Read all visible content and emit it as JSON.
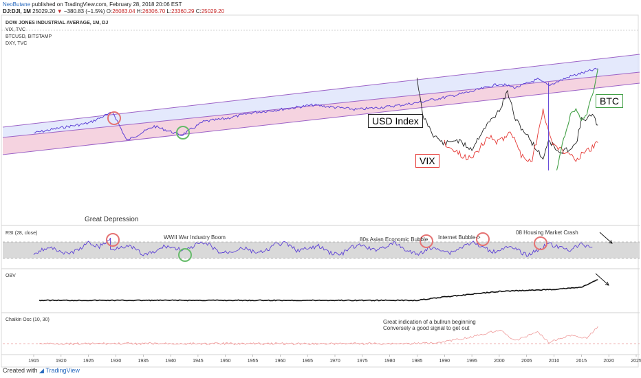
{
  "header": {
    "author": "NeoButane",
    "published": "published on TradingView.com, February 28, 2018 20:06 EST",
    "symbol": "DJ:DJI, 1M",
    "last": "25029.20",
    "change": "−380.83 (−1.5%)",
    "open_label": "O:",
    "open": "26083.04",
    "high_label": "H:",
    "high": "26306.70",
    "low_label": "L:",
    "low": "23360.29",
    "close_label": "C:",
    "close": "25029.20"
  },
  "legend": {
    "main": "DOW JONES INDUSTRIAL AVERAGE, 1M, DJ",
    "s2": "VIX, TVC",
    "s3": "BTCUSD, BITSTAMP",
    "s4": "DXY, TVC"
  },
  "panes": {
    "rsi": "RSI (28, close)",
    "obv": "OBV",
    "chaikin": "Chaikin Osc (10, 30)"
  },
  "annotations": {
    "usd_index": "USD Index",
    "vix": "VIX",
    "btc": "BTC",
    "great_depression": "Great Depression",
    "wwii": "WWII War Industry Boom",
    "asian": "80s Asian Economic Bubble",
    "internet": "Internet Bubble->",
    "housing": "08 Housing Market Crash",
    "bullrun1": "Great indication of a bullrun beginning",
    "bullrun2": "Conversely a good signal to get out"
  },
  "footer": {
    "created": "Created with",
    "brand": "TradingView"
  },
  "colors": {
    "dji": "#5b3fd6",
    "vix": "#e53935",
    "dxy": "#222222",
    "btc": "#43a047",
    "upper_band": "#dde3fb",
    "lower_band": "#f2c8d8",
    "channel_line": "#9c63c7",
    "red_circle": "#e57373",
    "green_circle": "#66bb6a"
  },
  "chart_data": {
    "type": "line",
    "x_ticks": [
      "1915",
      "1920",
      "1925",
      "1930",
      "1935",
      "1940",
      "1945",
      "1950",
      "1955",
      "1960",
      "1965",
      "1970",
      "1975",
      "1980",
      "1985",
      "1990",
      "1995",
      "2000",
      "2005",
      "2010",
      "2015",
      "2020",
      "2025"
    ],
    "series": [
      {
        "name": "DOW JONES INDUSTRIAL AVERAGE",
        "note": "log-scale trend inside channel",
        "x": [
          1915,
          1920,
          1925,
          1928,
          1929.5,
          1932,
          1937,
          1942,
          1946,
          1950,
          1955,
          1960,
          1966,
          1970,
          1974,
          1980,
          1985,
          1987,
          1990,
          1995,
          2000,
          2003,
          2007,
          2009,
          2013,
          2018
        ],
        "y": [
          0.15,
          0.22,
          0.28,
          0.38,
          0.42,
          0.05,
          0.24,
          0.12,
          0.3,
          0.34,
          0.42,
          0.46,
          0.52,
          0.49,
          0.46,
          0.5,
          0.55,
          0.58,
          0.62,
          0.7,
          0.8,
          0.75,
          0.86,
          0.78,
          0.9,
          1.0
        ]
      },
      {
        "name": "VIX",
        "x": [
          1990,
          1992,
          1994,
          1996,
          1998,
          2000,
          2002,
          2004,
          2006,
          2008,
          2009,
          2010,
          2012,
          2014,
          2016,
          2018
        ],
        "y": [
          0.45,
          0.3,
          0.2,
          0.3,
          0.55,
          0.45,
          0.65,
          0.25,
          0.15,
          1.0,
          0.6,
          0.4,
          0.3,
          0.2,
          0.3,
          0.45
        ]
      },
      {
        "name": "DXY",
        "x": [
          1985,
          1986,
          1988,
          1990,
          1992,
          1995,
          1997,
          2000,
          2001.5,
          2003,
          2005,
          2008,
          2009,
          2011,
          2014,
          2015,
          2017,
          2018
        ],
        "y": [
          1.0,
          0.6,
          0.4,
          0.3,
          0.35,
          0.25,
          0.45,
          0.65,
          0.85,
          0.55,
          0.4,
          0.15,
          0.35,
          0.2,
          0.3,
          0.55,
          0.6,
          0.5
        ]
      },
      {
        "name": "BTC",
        "x": [
          2010.5,
          2011.5,
          2013,
          2014,
          2015,
          2016,
          2017,
          2017.5,
          2018
        ],
        "y": [
          0.0,
          0.25,
          0.55,
          0.6,
          0.5,
          0.55,
          0.75,
          0.85,
          1.0
        ]
      }
    ]
  }
}
